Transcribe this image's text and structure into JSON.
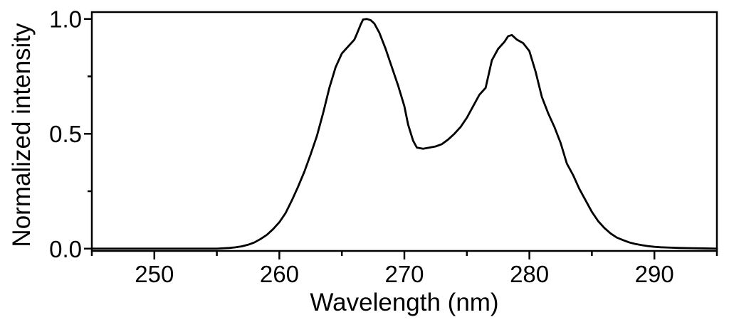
{
  "chart_data": {
    "type": "line",
    "title": "",
    "xlabel": "Wavelength (nm)",
    "ylabel": "Normalized intensity",
    "xlim": [
      245,
      295
    ],
    "ylim": [
      -0.01,
      1.03
    ],
    "x_major_ticks": [
      250,
      260,
      270,
      280,
      290
    ],
    "x_major_tick_labels": [
      "250",
      "260",
      "270",
      "280",
      "290"
    ],
    "x_minor_ticks": [
      245,
      255,
      265,
      275,
      285,
      295
    ],
    "y_major_ticks": [
      0.0,
      0.5,
      1.0
    ],
    "y_major_tick_labels": [
      "0.0",
      "0.5",
      "1.0"
    ],
    "y_minor_ticks": [
      0.25,
      0.75
    ],
    "grid": false,
    "legend": "none",
    "series": [
      {
        "color": "#000000",
        "x": [
          245,
          250,
          254,
          255,
          256,
          256.5,
          257,
          257.5,
          258,
          258.5,
          259,
          259.5,
          260,
          260.5,
          261,
          261.5,
          262,
          262.5,
          263,
          263.5,
          264,
          264.5,
          265,
          265.5,
          266,
          266.2,
          266.5,
          266.7,
          267,
          267.3,
          267.6,
          268,
          268.5,
          269,
          269.5,
          270,
          270.3,
          270.7,
          271,
          271.5,
          272,
          272.5,
          273,
          273.5,
          274,
          274.5,
          275,
          275.5,
          276,
          276.5,
          277,
          277.5,
          278,
          278.3,
          278.6,
          279,
          279.5,
          280,
          280.5,
          281,
          281.5,
          282,
          282.5,
          283,
          283.5,
          284,
          284.5,
          285,
          285.5,
          286,
          286.5,
          287,
          287.5,
          288,
          288.5,
          289,
          289.5,
          290,
          290.5,
          291,
          292,
          293,
          294,
          295
        ],
        "y": [
          0.0,
          0.0,
          0.0,
          0.0,
          0.003,
          0.006,
          0.01,
          0.017,
          0.027,
          0.042,
          0.06,
          0.085,
          0.115,
          0.155,
          0.21,
          0.27,
          0.335,
          0.41,
          0.49,
          0.59,
          0.7,
          0.79,
          0.85,
          0.88,
          0.91,
          0.935,
          0.975,
          0.998,
          1.0,
          0.995,
          0.98,
          0.94,
          0.87,
          0.79,
          0.71,
          0.62,
          0.54,
          0.47,
          0.44,
          0.435,
          0.44,
          0.445,
          0.455,
          0.475,
          0.5,
          0.53,
          0.57,
          0.62,
          0.67,
          0.7,
          0.82,
          0.87,
          0.9,
          0.925,
          0.93,
          0.91,
          0.895,
          0.86,
          0.77,
          0.66,
          0.59,
          0.53,
          0.46,
          0.37,
          0.32,
          0.26,
          0.21,
          0.16,
          0.12,
          0.09,
          0.066,
          0.048,
          0.037,
          0.027,
          0.02,
          0.015,
          0.011,
          0.008,
          0.006,
          0.005,
          0.003,
          0.002,
          0.001,
          0.0
        ]
      }
    ]
  }
}
